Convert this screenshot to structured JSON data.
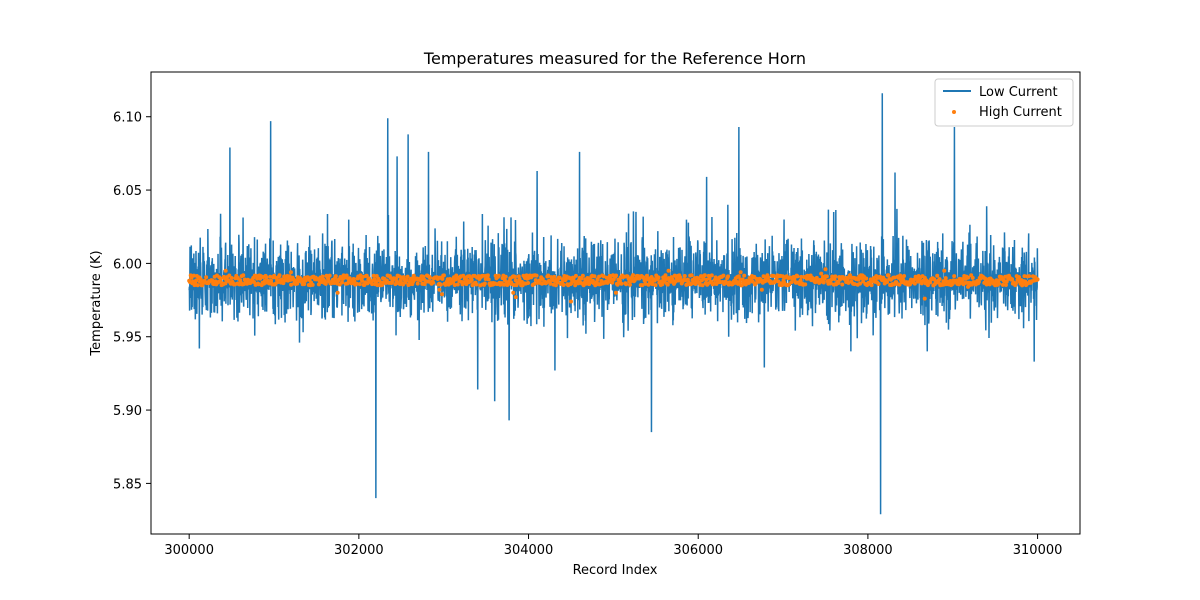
{
  "chart_data": {
    "type": "line",
    "title": "Temperatures measured for the Reference Horn",
    "xlabel": "Record Index",
    "ylabel": "Temperature (K)",
    "xlim": [
      299550,
      310500
    ],
    "ylim": [
      5.8155,
      6.1305
    ],
    "x_ticks": [
      300000,
      302000,
      304000,
      306000,
      308000,
      310000
    ],
    "x_tick_labels": [
      "300000",
      "302000",
      "304000",
      "306000",
      "308000",
      "310000"
    ],
    "y_ticks": [
      5.85,
      5.9,
      5.95,
      6.0,
      6.05,
      6.1
    ],
    "y_tick_labels": [
      "5.85",
      "5.90",
      "5.95",
      "6.00",
      "6.05",
      "6.10"
    ],
    "legend_position": "top-right",
    "series": [
      {
        "name": "Low Current",
        "style": "line",
        "color": "#1f77b4",
        "x_start": 300000,
        "x_end": 310000,
        "baseline": 5.988,
        "noise_band": [
          5.955,
          6.022
        ],
        "spikes": [
          {
            "x": 300120,
            "y": 5.942
          },
          {
            "x": 300480,
            "y": 6.079
          },
          {
            "x": 300960,
            "y": 6.097
          },
          {
            "x": 301300,
            "y": 5.946
          },
          {
            "x": 302200,
            "y": 5.84
          },
          {
            "x": 302340,
            "y": 6.099
          },
          {
            "x": 302450,
            "y": 6.073
          },
          {
            "x": 302580,
            "y": 6.088
          },
          {
            "x": 302820,
            "y": 6.076
          },
          {
            "x": 303400,
            "y": 5.914
          },
          {
            "x": 303600,
            "y": 5.906
          },
          {
            "x": 303770,
            "y": 5.893
          },
          {
            "x": 304100,
            "y": 6.063
          },
          {
            "x": 304310,
            "y": 5.927
          },
          {
            "x": 304600,
            "y": 6.076
          },
          {
            "x": 305450,
            "y": 5.885
          },
          {
            "x": 306100,
            "y": 6.059
          },
          {
            "x": 306350,
            "y": 6.04
          },
          {
            "x": 306480,
            "y": 6.093
          },
          {
            "x": 306780,
            "y": 5.929
          },
          {
            "x": 307800,
            "y": 5.94
          },
          {
            "x": 308150,
            "y": 5.829
          },
          {
            "x": 308170,
            "y": 6.116
          },
          {
            "x": 308320,
            "y": 6.062
          },
          {
            "x": 308700,
            "y": 5.94
          },
          {
            "x": 309020,
            "y": 6.093
          },
          {
            "x": 309400,
            "y": 6.039
          },
          {
            "x": 309960,
            "y": 5.933
          }
        ]
      },
      {
        "name": "High Current",
        "style": "scatter",
        "color": "#ff7f0e",
        "x_start": 300000,
        "x_end": 310000,
        "baseline": 5.988,
        "noise_band": [
          5.985,
          5.992
        ],
        "outliers": [
          {
            "x": 300430,
            "y": 5.995
          },
          {
            "x": 301200,
            "y": 5.994
          },
          {
            "x": 301750,
            "y": 5.98
          },
          {
            "x": 302950,
            "y": 5.982
          },
          {
            "x": 302980,
            "y": 5.979
          },
          {
            "x": 303820,
            "y": 5.98
          },
          {
            "x": 303850,
            "y": 5.977
          },
          {
            "x": 304500,
            "y": 5.974
          },
          {
            "x": 305030,
            "y": 5.98
          },
          {
            "x": 305650,
            "y": 5.995
          },
          {
            "x": 306500,
            "y": 5.994
          },
          {
            "x": 306750,
            "y": 5.982
          },
          {
            "x": 307450,
            "y": 5.993
          },
          {
            "x": 307500,
            "y": 5.996
          },
          {
            "x": 308670,
            "y": 5.976
          },
          {
            "x": 308900,
            "y": 5.995
          },
          {
            "x": 309180,
            "y": 5.984
          }
        ]
      }
    ]
  }
}
